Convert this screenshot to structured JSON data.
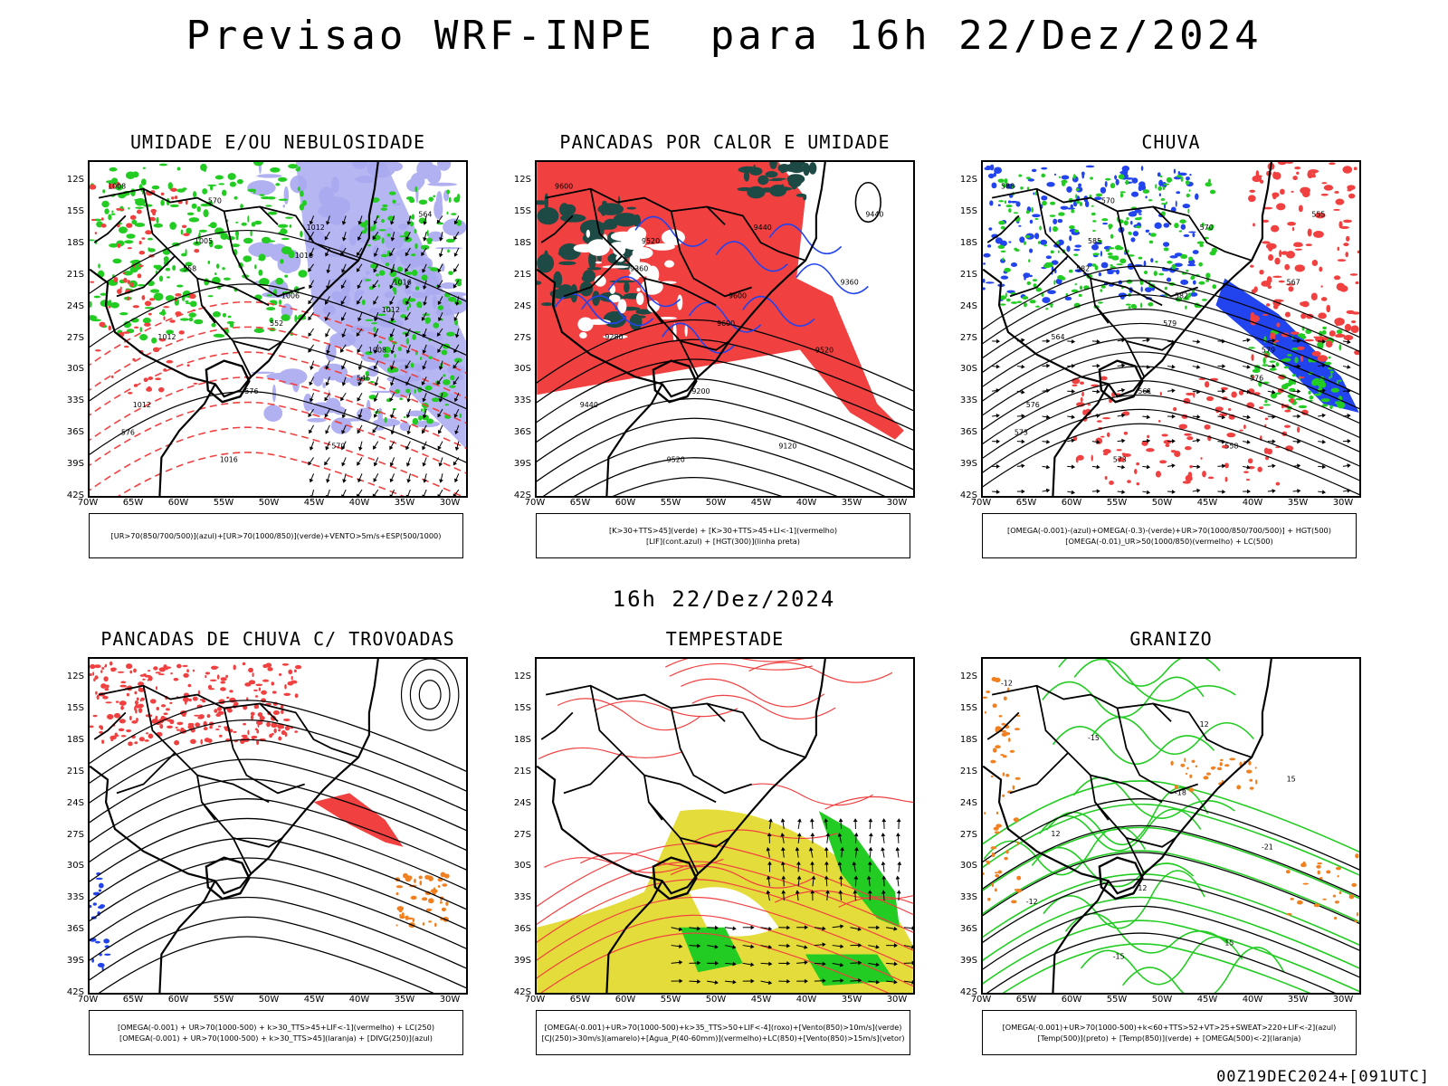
{
  "main_title": "Previsao WRF-INPE  para 16h 22/Dez/2024",
  "mid_title": "16h 22/Dez/2024",
  "footer": "00Z19DEC2024+[091UTC]",
  "lat_ticks": [
    "12S",
    "15S",
    "18S",
    "21S",
    "24S",
    "27S",
    "30S",
    "33S",
    "36S",
    "39S",
    "42S"
  ],
  "lon_ticks": [
    "70W",
    "65W",
    "60W",
    "55W",
    "50W",
    "45W",
    "40W",
    "35W",
    "30W"
  ],
  "panels": [
    {
      "title": "UMIDADE E/OU NEBULOSIDADE",
      "legend": [
        "[UR>70(850/700/500)](azul)+[UR>70(1000/850)](verde)+VENTO>5m/s+ESP(500/1000)"
      ],
      "labels": [
        "1008",
        "1005",
        "1006",
        "1008",
        "1012",
        "1016",
        "1012",
        "1016",
        "1012",
        "576",
        "570",
        "564",
        "558",
        "552",
        "546",
        "576",
        "570",
        "1016",
        "1012"
      ]
    },
    {
      "title": "PANCADAS POR CALOR E UMIDADE",
      "legend": [
        "[K>30+TTS>45](verde) + [K>30+TTS>45+LI<-1](vermelho)",
        "[LIF](cont.azul) + [HGT(300)](linha preta)"
      ],
      "labels": [
        "9600",
        "9520",
        "9600",
        "9520",
        "9440",
        "9520",
        "9440",
        "9360",
        "9280",
        "9200",
        "9120",
        "9440",
        "9360",
        "9600"
      ]
    },
    {
      "title": "CHUVA",
      "legend": [
        "[OMEGA(-0.001)-(azul)+OMEGA(-0.3)-(verde)+UR>70(1000/850/700/500)] + HGT(500)",
        "[OMEGA(-0.01)_UR>50(1000/850)(vermelho) + LC(500)"
      ],
      "labels": [
        "588",
        "585",
        "582",
        "579",
        "576",
        "573",
        "570",
        "567",
        "564",
        "561",
        "558",
        "555",
        "582",
        "579",
        "576",
        "573",
        "570"
      ]
    },
    {
      "title": "PANCADAS DE CHUVA C/ TROVOADAS",
      "legend": [
        "[OMEGA(-0.001) + UR>70(1000-500) + k>30_TTS>45+LIF<-1](vermelho) + LC(250)",
        "[OMEGA(-0.001) + UR>70(1000-500) + k>30_TTS>45](laranja) + [DIVG(250)](azul)"
      ],
      "labels": []
    },
    {
      "title": "TEMPESTADE",
      "legend": [
        "[OMEGA(-0.001)+UR>70(1000-500)+k>35_TTS>50+LIF<-4](roxo)+[Vento(850)>10m/s](verde)",
        "[CJ(250)>30m/s](amarelo)+[Agua_P(40-60mm)](vermelho)+LC(850)+[Vento(850)>15m/s](vetor)"
      ],
      "labels": []
    },
    {
      "title": "GRANIZO",
      "legend": [
        "[OMEGA(-0.001)+UR>70(1000-500)+k<60+TTS>52+VT>25+SWEAT>220+LIF<-2](azul)",
        "[Temp(500)](preto) + [Temp(850)](verde) + [OMEGA(500)<-2](laranja)"
      ],
      "labels": [
        "-12",
        "-15",
        "-18",
        "-21",
        "-12",
        "-15",
        "12",
        "15",
        "12",
        "12",
        "15"
      ]
    }
  ],
  "colors": {
    "red": "#f04040",
    "green": "#22cc22",
    "blue": "#2244ee",
    "lavender": "#a9a9f0",
    "teal": "#1d4a44",
    "yellow": "#e4dc3a",
    "orange": "#f08020",
    "black": "#000000"
  }
}
